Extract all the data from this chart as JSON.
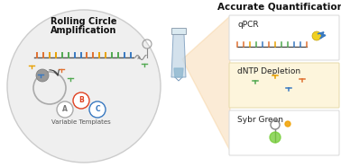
{
  "title": "Accurate Quantification?",
  "left_title_line1": "Rolling Circle",
  "left_title_line2": "Amplification",
  "subtitle_bottom": "Variable Templates",
  "circle_bg": "#efefef",
  "circle_border": "#cccccc",
  "box_white_bg": "#ffffff",
  "box_yellow_bg": "#fdf5dc",
  "box_white_border": "#dddddd",
  "box_yellow_border": "#e8ddb0",
  "qpcr_label": "qPCR",
  "dntp_label": "dNTP Depletion",
  "sybr_label": "Sybr Green",
  "dna_colors": [
    "#e07030",
    "#e07030",
    "#e8a000",
    "#e8a000",
    "#50a850",
    "#50a850",
    "#3878c0",
    "#3878c0",
    "#e07030",
    "#e07030",
    "#e8a000",
    "#e8a000",
    "#50a850",
    "#50a850",
    "#3878c0",
    "#3878c0"
  ],
  "background": "#ffffff",
  "circle_A_color": "#777777",
  "circle_B_color": "#e04020",
  "circle_C_color": "#3878c0",
  "tube_body_color": "#c8dae8",
  "tube_cap_color": "#d8e8f0",
  "tube_liquid_color": "#90b8d0",
  "fan_color": "#f5c88a",
  "sybr_green_color": "#70cc30",
  "yellow_dot_color": "#f0d020",
  "nuc_colors": [
    "#e8a000",
    "#3878c0",
    "#e07030",
    "#50a850",
    "#e8a000",
    "#50a850"
  ]
}
